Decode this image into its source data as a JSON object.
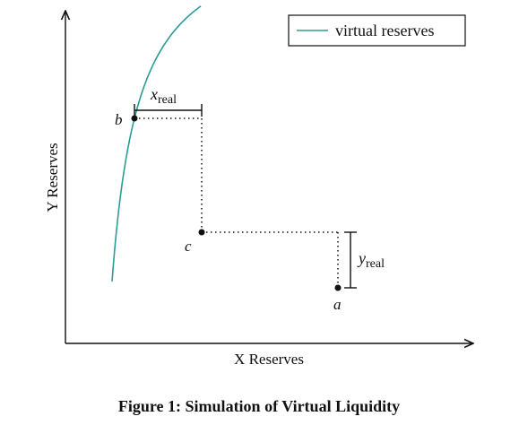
{
  "chart_data": {
    "type": "line",
    "xlabel": "X Reserves",
    "ylabel": "Y Reserves",
    "legend": {
      "position": "top-right",
      "entries": [
        "virtual reserves"
      ]
    },
    "series": [
      {
        "name": "virtual reserves",
        "color": "#2a9d94",
        "function": "x*y=k"
      }
    ],
    "points": [
      {
        "label": "a"
      },
      {
        "label": "b"
      },
      {
        "label": "c"
      }
    ],
    "annotations": {
      "x_real": {
        "base": "x",
        "subscript": "real"
      },
      "y_real": {
        "base": "y",
        "subscript": "real"
      }
    },
    "grid": false
  },
  "caption": "Figure 1: Simulation of Virtual Liquidity",
  "colors": {
    "curve": "#2a9d94",
    "axes": "#111111"
  }
}
